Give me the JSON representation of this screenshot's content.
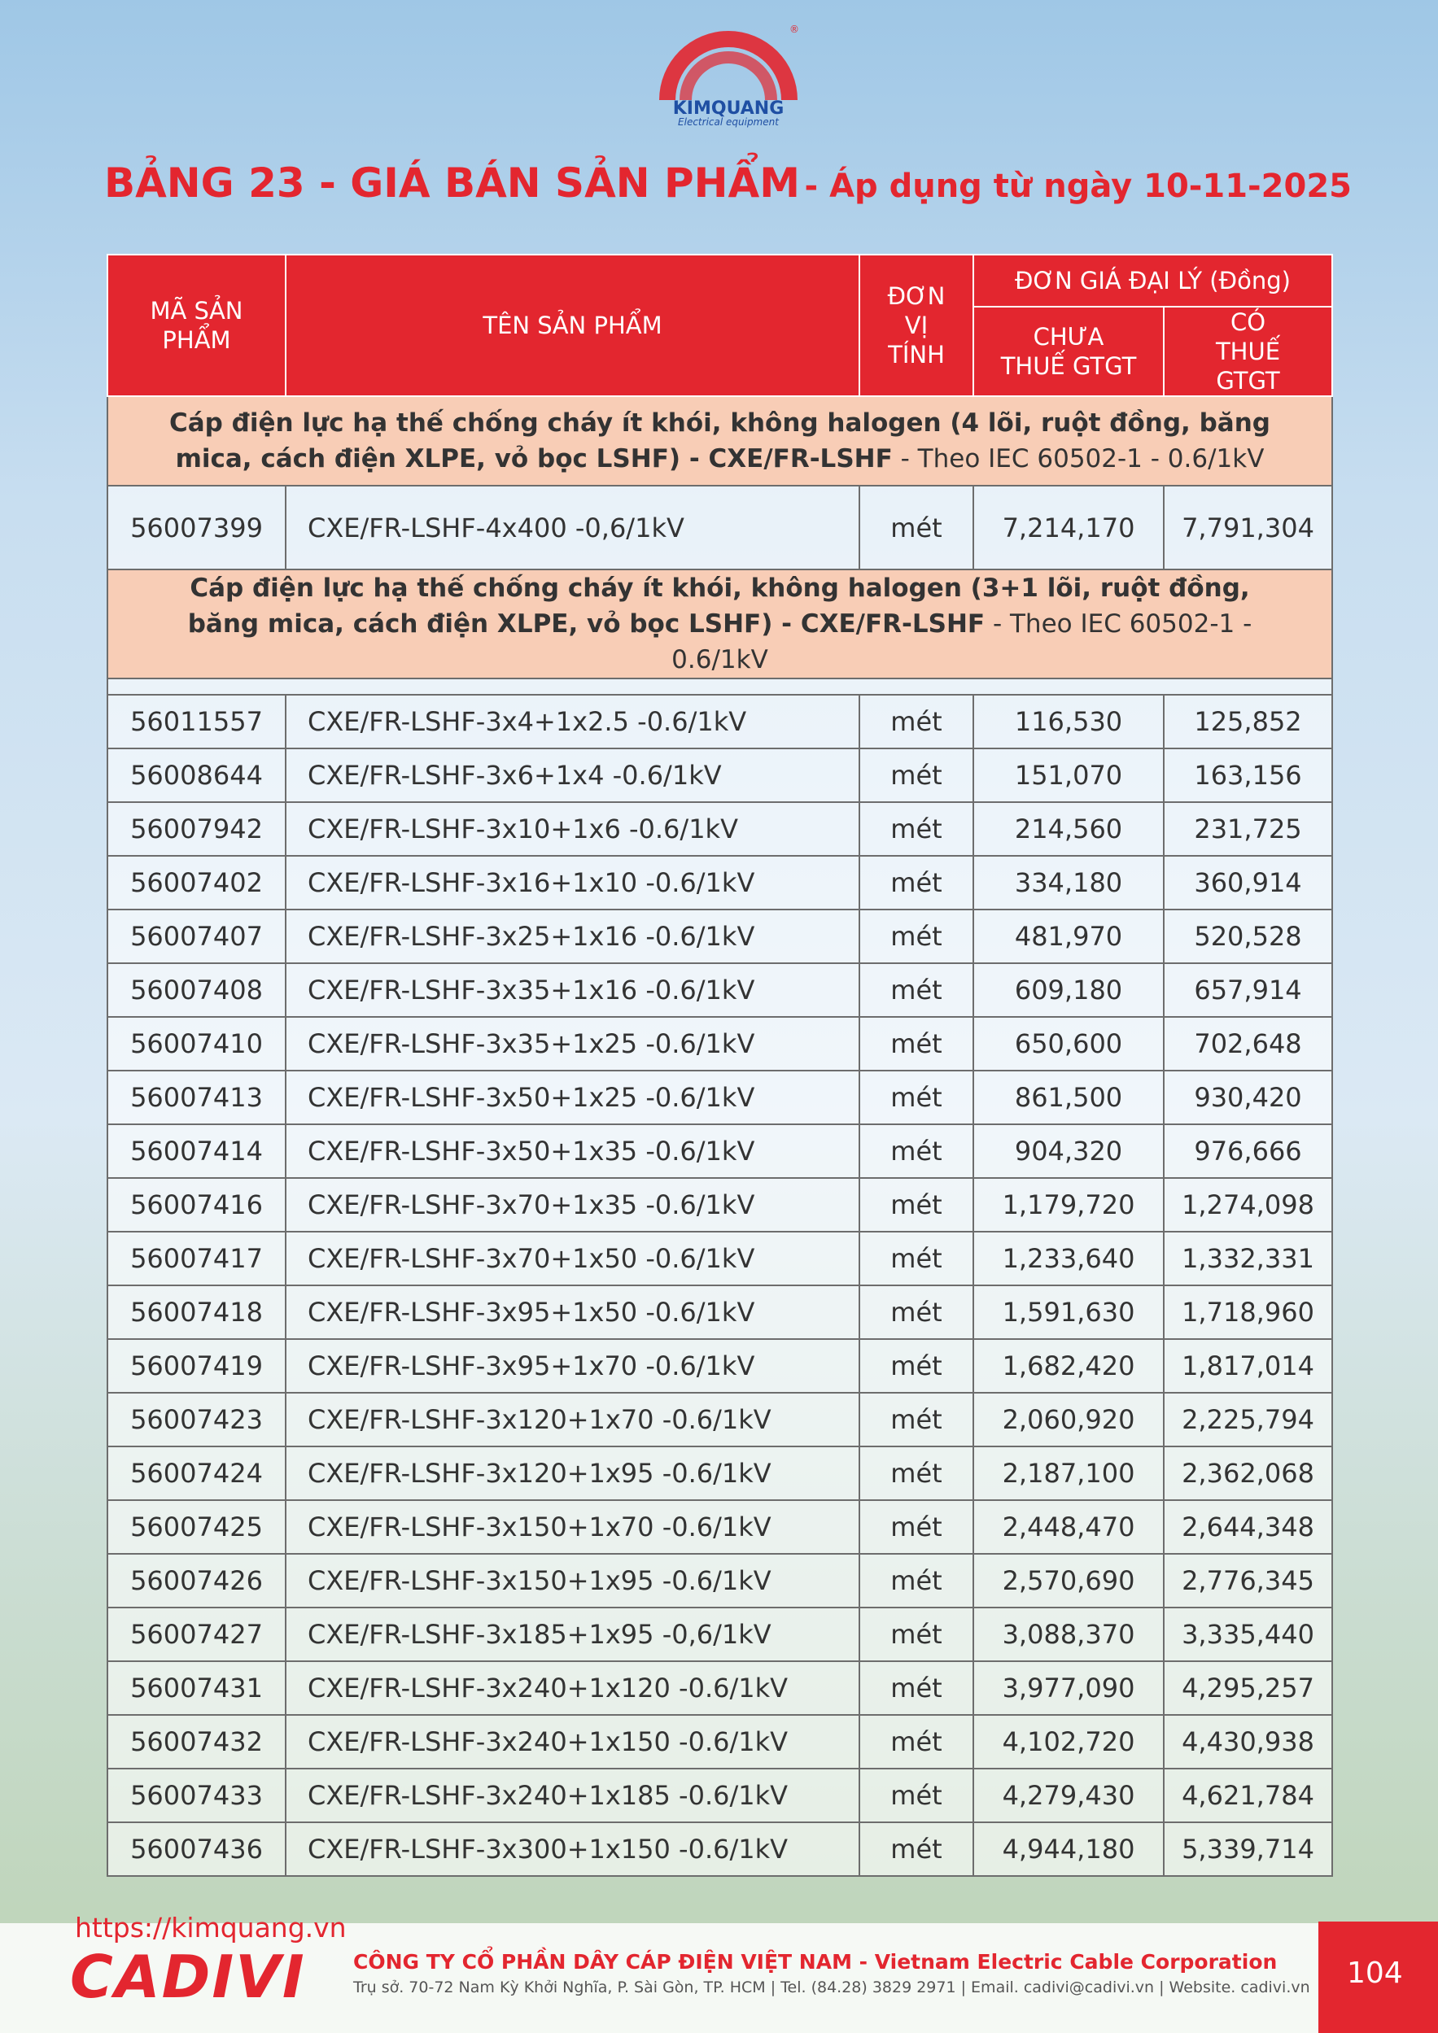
{
  "logo": {
    "brand": "KIMQUANG",
    "tagline": "Electrical equipment",
    "mark": "®"
  },
  "header": {
    "title_main": "BẢNG 23 - GIÁ BÁN SẢN PHẨM",
    "title_date": "- Áp dụng từ ngày 10-11-2025"
  },
  "table": {
    "head": {
      "code": "MÃ SẢN PHẨM",
      "name": "TÊN SẢN PHẨM",
      "unit": "ĐƠN VỊ TÍNH",
      "price_group": "ĐƠN GIÁ ĐẠI LÝ (Đồng)",
      "price_pre_tax": "CHƯA THUẾ GTGT",
      "price_tax": "CÓ THUẾ GTGT"
    },
    "sections": [
      {
        "title": "Cáp điện lực hạ thế chống cháy ít khói, không halogen (4 lõi, ruột đồng, băng mica, cách điện XLPE, vỏ bọc LSHF) - CXE/FR-LSHF",
        "note": "- Theo IEC 60502-1 - 0.6/1kV",
        "rows": [
          [
            "56007399",
            "CXE/FR-LSHF-4x400 -0,6/1kV",
            "mét",
            "7,214,170",
            "7,791,304"
          ]
        ]
      },
      {
        "title": "Cáp điện lực hạ thế chống cháy ít khói, không halogen (3+1 lõi, ruột đồng, băng mica, cách điện XLPE, vỏ bọc LSHF) - CXE/FR-LSHF",
        "note": "- Theo IEC 60502-1 - 0.6/1kV",
        "rows": [
          [
            "56011557",
            "CXE/FR-LSHF-3x4+1x2.5 -0.6/1kV",
            "mét",
            "116,530",
            "125,852"
          ],
          [
            "56008644",
            "CXE/FR-LSHF-3x6+1x4 -0.6/1kV",
            "mét",
            "151,070",
            "163,156"
          ],
          [
            "56007942",
            "CXE/FR-LSHF-3x10+1x6 -0.6/1kV",
            "mét",
            "214,560",
            "231,725"
          ],
          [
            "56007402",
            "CXE/FR-LSHF-3x16+1x10 -0.6/1kV",
            "mét",
            "334,180",
            "360,914"
          ],
          [
            "56007407",
            "CXE/FR-LSHF-3x25+1x16 -0.6/1kV",
            "mét",
            "481,970",
            "520,528"
          ],
          [
            "56007408",
            "CXE/FR-LSHF-3x35+1x16 -0.6/1kV",
            "mét",
            "609,180",
            "657,914"
          ],
          [
            "56007410",
            "CXE/FR-LSHF-3x35+1x25 -0.6/1kV",
            "mét",
            "650,600",
            "702,648"
          ],
          [
            "56007413",
            "CXE/FR-LSHF-3x50+1x25 -0.6/1kV",
            "mét",
            "861,500",
            "930,420"
          ],
          [
            "56007414",
            "CXE/FR-LSHF-3x50+1x35 -0.6/1kV",
            "mét",
            "904,320",
            "976,666"
          ],
          [
            "56007416",
            "CXE/FR-LSHF-3x70+1x35 -0.6/1kV",
            "mét",
            "1,179,720",
            "1,274,098"
          ],
          [
            "56007417",
            "CXE/FR-LSHF-3x70+1x50 -0.6/1kV",
            "mét",
            "1,233,640",
            "1,332,331"
          ],
          [
            "56007418",
            "CXE/FR-LSHF-3x95+1x50 -0.6/1kV",
            "mét",
            "1,591,630",
            "1,718,960"
          ],
          [
            "56007419",
            "CXE/FR-LSHF-3x95+1x70 -0.6/1kV",
            "mét",
            "1,682,420",
            "1,817,014"
          ],
          [
            "56007423",
            "CXE/FR-LSHF-3x120+1x70 -0.6/1kV",
            "mét",
            "2,060,920",
            "2,225,794"
          ],
          [
            "56007424",
            "CXE/FR-LSHF-3x120+1x95 -0.6/1kV",
            "mét",
            "2,187,100",
            "2,362,068"
          ],
          [
            "56007425",
            "CXE/FR-LSHF-3x150+1x70 -0.6/1kV",
            "mét",
            "2,448,470",
            "2,644,348"
          ],
          [
            "56007426",
            "CXE/FR-LSHF-3x150+1x95 -0.6/1kV",
            "mét",
            "2,570,690",
            "2,776,345"
          ],
          [
            "56007427",
            "CXE/FR-LSHF-3x185+1x95 -0,6/1kV",
            "mét",
            "3,088,370",
            "3,335,440"
          ],
          [
            "56007431",
            "CXE/FR-LSHF-3x240+1x120 -0.6/1kV",
            "mét",
            "3,977,090",
            "4,295,257"
          ],
          [
            "56007432",
            "CXE/FR-LSHF-3x240+1x150 -0.6/1kV",
            "mét",
            "4,102,720",
            "4,430,938"
          ],
          [
            "56007433",
            "CXE/FR-LSHF-3x240+1x185 -0.6/1kV",
            "mét",
            "4,279,430",
            "4,621,784"
          ],
          [
            "56007436",
            "CXE/FR-LSHF-3x300+1x150 -0.6/1kV",
            "mét",
            "4,944,180",
            "5,339,714"
          ]
        ]
      }
    ]
  },
  "footer": {
    "url": "https://kimquang.vn",
    "brand": "CADIVI",
    "company": "CÔNG TY CỔ PHẦN DÂY CÁP ĐIỆN VIỆT NAM - Vietnam Electric Cable Corporation",
    "address": "Trụ sở. 70-72 Nam Kỳ Khởi Nghĩa, P. Sài Gòn, TP. HCM | Tel. (84.28) 3829 2971 | Email. cadivi@cadivi.vn | Website. cadivi.vn",
    "page": "104"
  }
}
